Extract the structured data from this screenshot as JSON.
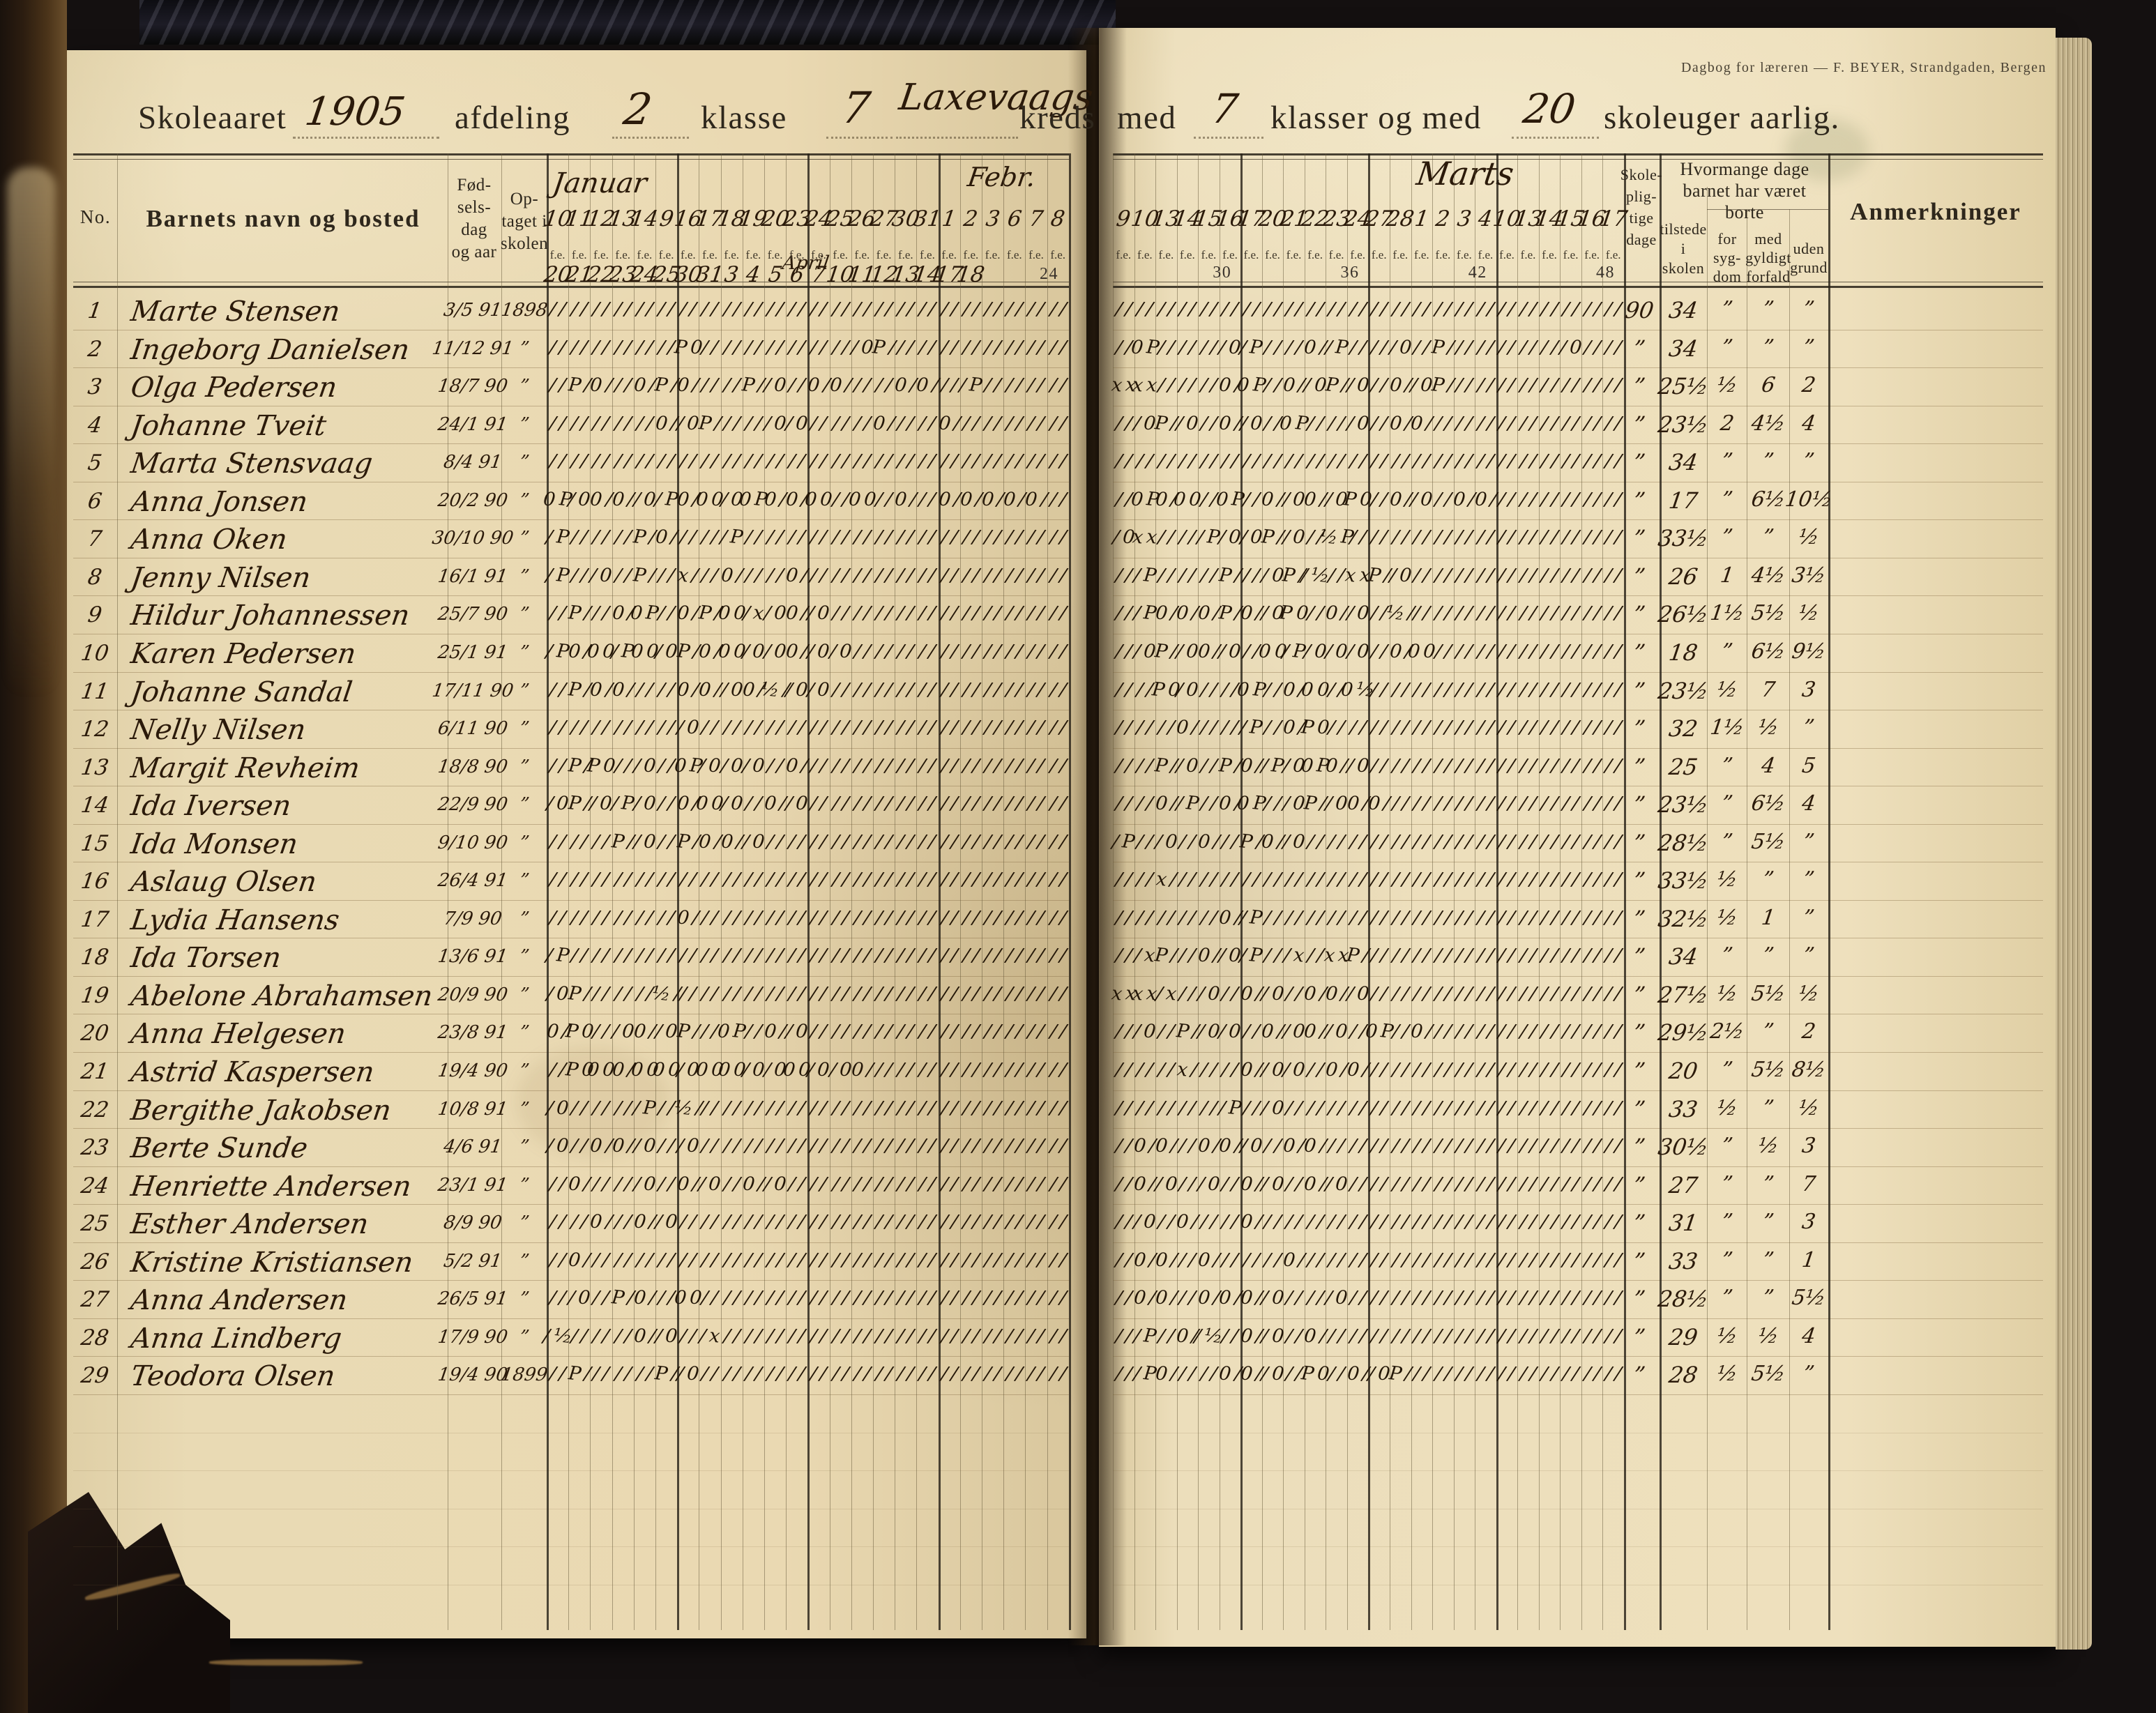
{
  "publisher_line": "Dagbog for læreren — F. BEYER, Strandgaden, Bergen",
  "title": {
    "skoleaaret_label": "Skoleaaret",
    "year": "1905",
    "afdeling_label": "afdeling",
    "afdeling_value": "2",
    "klasse_label": "klasse",
    "klasse_value": "7",
    "kreds_value": "Laxevaags",
    "kreds_label": "kreds",
    "med_label": "med",
    "klasser_value": "7",
    "klasser_og_med_label": "klasser og med",
    "skoleuger_value": "20",
    "skoleuger_label": "skoleuger aarlig."
  },
  "table": {
    "no_label": "No.",
    "name_label": "Barnets navn og bosted",
    "birth_label": [
      "Fød-",
      "sels-",
      "dag",
      "og aar"
    ],
    "admitted_label": [
      "Op-",
      "taget i",
      "skolen"
    ],
    "fe_label": "f.e.",
    "months": {
      "left": "Januar",
      "feb": "Febr.",
      "april": "April",
      "right": "Marts"
    },
    "dates_left_top": [
      "10",
      "11",
      "12",
      "13",
      "14",
      "9",
      "16",
      "17",
      "18",
      "19",
      "20",
      "23",
      "24",
      "25",
      "26",
      "27",
      "30",
      "31",
      "1",
      "2",
      "3",
      "6",
      "7",
      "8"
    ],
    "dates_left_bottom": [
      "20",
      "21",
      "22",
      "23",
      "24",
      "25",
      "30",
      "31",
      "3",
      "4",
      "5",
      "6",
      "7",
      "10",
      "11",
      "12",
      "13",
      "14",
      "17",
      "18",
      "",
      "",
      "",
      ""
    ],
    "counter_left": "24",
    "dates_right_top": [
      "9",
      "10",
      "13",
      "14",
      "15",
      "16",
      "17",
      "20",
      "21",
      "22",
      "23",
      "24",
      "27",
      "28",
      "1",
      "2",
      "3",
      "4",
      "10",
      "13",
      "14",
      "15",
      "16",
      "17"
    ],
    "counters_right": [
      "30",
      "36",
      "42",
      "48"
    ],
    "skolepligtige_label": [
      "Skole-",
      "plig-",
      "tige",
      "dage"
    ],
    "borte_header": [
      "Hvormange dage",
      "barnet har været",
      "borte"
    ],
    "tilstede_label": [
      "tilstede",
      "i",
      "skolen"
    ],
    "sygdom_label": [
      "for",
      "syg-",
      "dom"
    ],
    "forfald_label": [
      "med",
      "gyldigt",
      "forfald"
    ],
    "uden_label": [
      "uden",
      "grund"
    ],
    "anm_label": "Anmerkninger",
    "ditto": "”"
  },
  "students": [
    {
      "no": "1",
      "name": "Marte Stensen",
      "birth": "3/5 91",
      "admitted": "1898",
      "pligtige": "90",
      "tilstede": "34",
      "sygdom": "”",
      "forfald": "”",
      "uden": "”",
      "ml": "////////////////////////////////////////////////",
      "mr": "////////////////////////////////////////////////"
    },
    {
      "no": "2",
      "name": "Ingeborg Danielsen",
      "birth": "11/12 91",
      "admitted": "”",
      "pligtige": "”",
      "tilstede": "34",
      "sygdom": "”",
      "forfald": "”",
      "uden": "”",
      "ml": "////////////P0///////////////0P/////////////////",
      "mr": "//0P///////0/P////0//P/////0//P////////////0////"
    },
    {
      "no": "3",
      "name": "Olga Pedersen",
      "birth": "18/7 90",
      "admitted": "”",
      "pligtige": "”",
      "tilstede": "25½",
      "sygdom": "½",
      "forfald": "6",
      "uden": "2",
      "ml": "//P/0///0/P/0/////P//0//0/0/////0/0////P////////",
      "mr": "xxxx//////0/0P//0//0P//0//0//0P/////////////////"
    },
    {
      "no": "4",
      "name": "Johanne Tveit",
      "birth": "24/1 91",
      "admitted": "”",
      "pligtige": "”",
      "tilstede": "23½",
      "sygdom": "2",
      "forfald": "4½",
      "uden": "4",
      "ml": "//////////0//0P//////0/0//////0/////0///////////",
      "mr": "///0P//0//0//0//0P/////0//0/0///////////////////"
    },
    {
      "no": "5",
      "name": "Marta Stensvaag",
      "birth": "8/4 91",
      "admitted": "”",
      "pligtige": "”",
      "tilstede": "34",
      "sygdom": "”",
      "forfald": "”",
      "uden": "”",
      "ml": "////////////////////////////////////////////////",
      "mr": "////////////////////////////////////////////////"
    },
    {
      "no": "6",
      "name": "Anna Jonsen",
      "birth": "20/2 90",
      "admitted": "”",
      "pligtige": "”",
      "tilstede": "17",
      "sygdom": "”",
      "forfald": "6½",
      "uden": "10½",
      "ml": "0P/00/0//0/P0/00/00P0/0/00//00//0///0/0/0/0/0///",
      "mr": "//0P0/00//0P//0//00//0P0//0//0//0/0/////////////"
    },
    {
      "no": "7",
      "name": "Anna Oken",
      "birth": "30/10 90",
      "admitted": "”",
      "pligtige": "”",
      "tilstede": "33½",
      "sygdom": "”",
      "forfald": "”",
      "uden": "½",
      "ml": "/P//////P/0//////P//////////////////////////////",
      "mr": "/0xx/////P/0/0P//0//hP//////////////////////////"
    },
    {
      "no": "8",
      "name": "Jenny Nilsen",
      "birth": "16/1 91",
      "admitted": "”",
      "pligtige": "”",
      "tilstede": "26",
      "sygdom": "1",
      "forfald": "4½",
      "uden": "3½",
      "ml": "/P///0//P///x///0/////0/////////////////////////",
      "mr": "///P//////P////0P//h//xxP//0////////////////////"
    },
    {
      "no": "9",
      "name": "Hildur Johannessen",
      "birth": "25/7 90",
      "admitted": "”",
      "pligtige": "”",
      "tilstede": "26½",
      "sygdom": "1½",
      "forfald": "5½",
      "uden": "½",
      "ml": "//P///0/0P//0/P/00/x/00//0//////////////////////",
      "mr": "///P0/0/0/P/0//0P0//0//0//h/////////////////////"
    },
    {
      "no": "10",
      "name": "Karen Pedersen",
      "birth": "25/1 91",
      "admitted": "”",
      "pligtige": "”",
      "tilstede": "18",
      "sygdom": "”",
      "forfald": "6½",
      "uden": "9½",
      "ml": "/P0/00/P00/0P/0/00/0/00//0/0////////////////////",
      "mr": "///0P//00//0//00/P/0/0/0//0/00//////////////////"
    },
    {
      "no": "11",
      "name": "Johanne Sandal",
      "birth": "17/11 90",
      "admitted": "”",
      "pligtige": "”",
      "tilstede": "23½",
      "sygdom": "½",
      "forfald": "7",
      "uden": "3",
      "ml": "//P/0/0/////0/0//00/h//0/0//////////////////////",
      "mr": "////P0/0////0P//0/00//0h////////////////////////"
    },
    {
      "no": "12",
      "name": "Nelly Nilsen",
      "birth": "6/11 90",
      "admitted": "”",
      "pligtige": "”",
      "tilstede": "32",
      "sygdom": "1½",
      "forfald": "½",
      "uden": "”",
      "ml": "/////////////0//////////////////////////////////",
      "mr": "//////0//////P//0/P0////////////////////////////"
    },
    {
      "no": "13",
      "name": "Margit Revheim",
      "birth": "18/8 90",
      "admitted": "”",
      "pligtige": "”",
      "tilstede": "25",
      "sygdom": "”",
      "forfald": "4",
      "uden": "5",
      "ml": "//P/P0///0//0P/0/0/0//0/////////////////////////",
      "mr": "////P//0//P/0//P/00P0//0////////////////////////"
    },
    {
      "no": "14",
      "name": "Ida Iversen",
      "birth": "22/9 90",
      "admitted": "”",
      "pligtige": "”",
      "tilstede": "23½",
      "sygdom": "”",
      "forfald": "6½",
      "uden": "4",
      "ml": "/0P//0/P/0//0/00/0//0//0////////////////////////",
      "mr": "////0//P//0/0P///0P//00/0///////////////////////"
    },
    {
      "no": "15",
      "name": "Ida Monsen",
      "birth": "9/10 90",
      "admitted": "”",
      "pligtige": "”",
      "tilstede": "28½",
      "sygdom": "”",
      "forfald": "5½",
      "uden": "”",
      "ml": "//////P//0//P/0/0//0////////////////////////////",
      "mr": "/P///0//0///P/0//0//////////////////////////////"
    },
    {
      "no": "16",
      "name": "Aslaug Olsen",
      "birth": "26/4 91",
      "admitted": "”",
      "pligtige": "”",
      "tilstede": "33½",
      "sygdom": "½",
      "forfald": "”",
      "uden": "”",
      "ml": "////////////////////////////////////////////////",
      "mr": "////x///////////////////////////////////////////"
    },
    {
      "no": "17",
      "name": "Lydia Hansens",
      "birth": "7/9 90",
      "admitted": "”",
      "pligtige": "”",
      "tilstede": "32½",
      "sygdom": "½",
      "forfald": "1",
      "uden": "”",
      "ml": "////////////0///////////////////////////////////",
      "mr": "//////////0//P//////////////////////////////////"
    },
    {
      "no": "18",
      "name": "Ida Torsen",
      "birth": "13/6 91",
      "admitted": "”",
      "pligtige": "”",
      "tilstede": "34",
      "sygdom": "”",
      "forfald": "”",
      "uden": "”",
      "ml": "/P//////////////////////////////////////////////",
      "mr": "///xP///0//0/P///x//xxP/////////////////////////"
    },
    {
      "no": "19",
      "name": "Abelone Abrahamsen",
      "birth": "20/9 90",
      "admitted": "”",
      "pligtige": "”",
      "tilstede": "27½",
      "sygdom": "½",
      "forfald": "5½",
      "uden": "½",
      "ml": "/0P///////h/////////////////////////////////////",
      "mr": "xxxx/x///0//0//0//0/0//0////////////////////////"
    },
    {
      "no": "20",
      "name": "Anna Helgesen",
      "birth": "23/8 91",
      "admitted": "”",
      "pligtige": "”",
      "tilstede": "29½",
      "sygdom": "2½",
      "forfald": "”",
      "uden": "2",
      "ml": "0/P0///00//0P///0P//0//0////////////////////////",
      "mr": "///0//P//0/0//0//00//0//0P//0///////////////////"
    },
    {
      "no": "21",
      "name": "Astrid Kaspersen",
      "birth": "19/4 90",
      "admitted": "”",
      "pligtige": "”",
      "tilstede": "20",
      "sygdom": "”",
      "forfald": "5½",
      "uden": "8½",
      "ml": "//P0000/0000/00000/0/000/0/00///////////////////",
      "mr": "//////x/////0//0/0//0/0/////////////////////////"
    },
    {
      "no": "22",
      "name": "Bergithe Jakobsen",
      "birth": "10/8 91",
      "admitted": "”",
      "pligtige": "”",
      "tilstede": "33",
      "sygdom": "½",
      "forfald": "”",
      "uden": "½",
      "ml": "/0///////P//h///////////////////////////////////",
      "mr": "///////////P///0////////////////////////////////"
    },
    {
      "no": "23",
      "name": "Berte Sunde",
      "birth": "4/6 91",
      "admitted": "”",
      "pligtige": "”",
      "tilstede": "30½",
      "sygdom": "”",
      "forfald": "½",
      "uden": "3",
      "ml": "/0//0/0//0///0//////////////////////////////////",
      "mr": "//0/0///0/0//0//0/0/////////////////////////////"
    },
    {
      "no": "24",
      "name": "Henriette Andersen",
      "birth": "23/1 91",
      "admitted": "”",
      "pligtige": "”",
      "tilstede": "27",
      "sygdom": "”",
      "forfald": "”",
      "uden": "7",
      "ml": "//0//////0//0//0//0//0//////////////////////////",
      "mr": "//0//0///0//0//0//0//0//////////////////////////"
    },
    {
      "no": "25",
      "name": "Esther Andersen",
      "birth": "8/9 90",
      "admitted": "”",
      "pligtige": "”",
      "tilstede": "31",
      "sygdom": "”",
      "forfald": "”",
      "uden": "3",
      "ml": "////0///0//0////////////////////////////////////",
      "mr": "///0//0/////0///////////////////////////////////"
    },
    {
      "no": "26",
      "name": "Kristine Kristiansen",
      "birth": "5/2 91",
      "admitted": "”",
      "pligtige": "”",
      "tilstede": "33",
      "sygdom": "”",
      "forfald": "”",
      "uden": "1",
      "ml": "//0/////////////////////////////////////////////",
      "mr": "//0/0///0///////0///////////////////////////////"
    },
    {
      "no": "27",
      "name": "Anna Andersen",
      "birth": "26/5 91",
      "admitted": "”",
      "pligtige": "”",
      "tilstede": "28½",
      "sygdom": "”",
      "forfald": "”",
      "uden": "5½",
      "ml": "///0//P/0///00//////////////////////////////////",
      "mr": "//0/0///0/0/0//0/////0//////////////////////////"
    },
    {
      "no": "28",
      "name": "Anna Lindberg",
      "birth": "17/9 90",
      "admitted": "”",
      "pligtige": "”",
      "tilstede": "29",
      "sygdom": "½",
      "forfald": "½",
      "uden": "4",
      "ml": "/h//////0//0///x////////////////////////////////",
      "mr": "///P//0//h//0//0//0/////////////////////////////"
    },
    {
      "no": "29",
      "name": "Teodora Olsen",
      "birth": "19/4 90",
      "admitted": "1899",
      "pligtige": "”",
      "tilstede": "28",
      "sygdom": "½",
      "forfald": "5½",
      "uden": "”",
      "ml": "//P///////P//0//////////////////////////////////",
      "mr": "///P0/////0/0//0//P0//0//0P/////////////////////"
    }
  ]
}
